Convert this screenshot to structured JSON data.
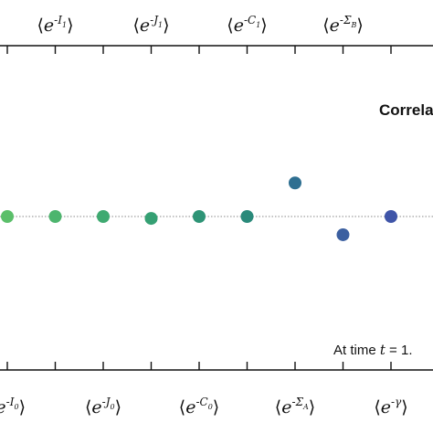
{
  "chart_data": {
    "type": "scatter",
    "title": "Correla",
    "annotation": "At time t = 1.",
    "top_ticks": [
      {
        "base": "e",
        "sub_sym": "I",
        "sub_idx": "1"
      },
      {
        "base": "e",
        "sub_sym": "J",
        "sub_idx": "1"
      },
      {
        "base": "e",
        "sub_sym": "C",
        "sub_idx": "1"
      },
      {
        "base": "e",
        "sub_sym": "Σ",
        "sub_idx": "B"
      }
    ],
    "bottom_ticks": [
      {
        "base": "e",
        "sub_sym": "I",
        "sub_idx": "0"
      },
      {
        "base": "e",
        "sub_sym": "J",
        "sub_idx": "0"
      },
      {
        "base": "e",
        "sub_sym": "C",
        "sub_idx": "0"
      },
      {
        "base": "e",
        "sub_sym": "Σ",
        "sub_idx": "A"
      },
      {
        "base": "e",
        "sub_sym": "γ",
        "sub_idx": ""
      }
    ],
    "x_index": [
      0,
      1,
      2,
      3,
      4,
      5,
      6,
      7,
      8
    ],
    "values": [
      0.0,
      0.0,
      0.0,
      -0.02,
      0.0,
      0.0,
      0.35,
      -0.19,
      0.0
    ],
    "colors": [
      "#5bbf6a",
      "#4db56e",
      "#3faa71",
      "#35a073",
      "#2e9476",
      "#2a8a7a",
      "#2e6f91",
      "#3b5fa0",
      "#3f55a8"
    ],
    "reference_line": 0,
    "ylim": [
      -1,
      1
    ],
    "xlim": [
      -0.5,
      8.5
    ],
    "grid": false
  }
}
